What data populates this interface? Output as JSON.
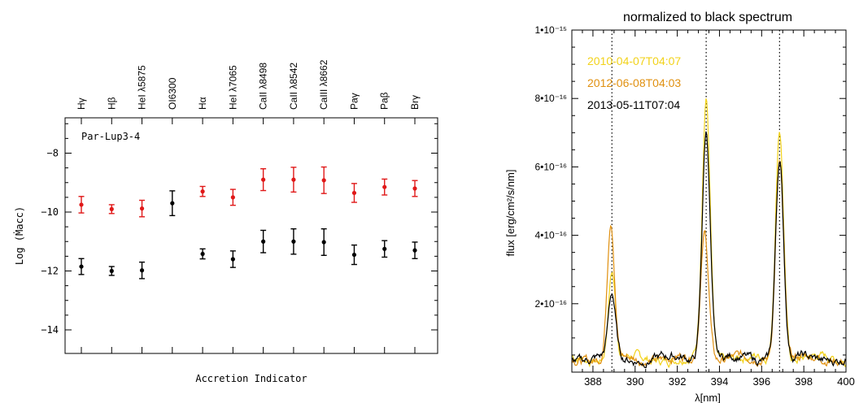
{
  "chart_data": [
    {
      "type": "scatter",
      "title": "",
      "annotation": "Par-Lup3-4",
      "xlabel": "Accretion Indicator",
      "ylabel": "Log (Ṁacc)",
      "categories": [
        "Hγ",
        "Hβ",
        "HeI λ5875",
        "OI6300",
        "Hα",
        "HeI λ7065",
        "CaII λ8498",
        "CaII λ8542",
        "CaIII λ8662",
        "Paγ",
        "Paβ",
        "Brγ"
      ],
      "ylim": [
        -14.8,
        -6.8
      ],
      "yticks": [
        -14,
        -12,
        -10,
        -8
      ],
      "series": [
        {
          "color": "#e01818",
          "values": [
            -9.75,
            -9.9,
            -9.88,
            null,
            -9.3,
            -9.5,
            -8.9,
            -8.9,
            -8.92,
            -9.35,
            -9.15,
            -9.2
          ],
          "err": [
            0.28,
            0.15,
            0.28,
            null,
            0.17,
            0.27,
            0.37,
            0.42,
            0.45,
            0.32,
            0.27,
            0.27
          ]
        },
        {
          "color": "#000000",
          "values": [
            -11.85,
            -12.0,
            -11.98,
            -9.7,
            -11.42,
            -11.6,
            -11.0,
            -11.0,
            -11.02,
            -11.45,
            -11.25,
            -11.3
          ],
          "err": [
            0.27,
            0.15,
            0.28,
            0.42,
            0.17,
            0.28,
            0.38,
            0.43,
            0.45,
            0.33,
            0.28,
            0.28
          ]
        }
      ]
    },
    {
      "type": "line",
      "title": "normalized to black spectrum",
      "xlabel": "λ[nm]",
      "ylabel": "flux [erg/cm²/s/nm]",
      "xlim": [
        387,
        400
      ],
      "ylim": [
        0,
        1e-15
      ],
      "xticks": [
        388,
        390,
        392,
        394,
        396,
        398,
        400
      ],
      "ytick_labels": [
        "1•10⁻¹⁵",
        "8•10⁻¹⁶",
        "6•10⁻¹⁶",
        "4•10⁻¹⁶",
        "2•10⁻¹⁶"
      ],
      "yticks": [
        1e-15,
        8e-16,
        6e-16,
        4e-16,
        2e-16
      ],
      "vlines": [
        388.9,
        393.37,
        396.85
      ],
      "baseline": 4e-17,
      "series": [
        {
          "name": "2010-04-07T04:07",
          "color": "#f2d21a",
          "peaks": [
            {
              "x": 388.9,
              "amp": 2.55e-16,
              "w": 0.17
            },
            {
              "x": 393.37,
              "amp": 7.6e-16,
              "w": 0.19
            },
            {
              "x": 396.85,
              "amp": 6.8e-16,
              "w": 0.19
            }
          ]
        },
        {
          "name": "2012-06-08T04:03",
          "color": "#e09010",
          "peaks": [
            {
              "x": 388.85,
              "amp": 4.05e-16,
              "w": 0.17
            },
            {
              "x": 393.3,
              "amp": 3.7e-16,
              "w": 0.19
            },
            {
              "x": 396.85,
              "amp": 5.8e-16,
              "w": 0.19
            }
          ]
        },
        {
          "name": "2013-05-11T07:04",
          "color": "#000000",
          "peaks": [
            {
              "x": 388.9,
              "amp": 1.85e-16,
              "w": 0.17
            },
            {
              "x": 393.37,
              "amp": 6.7e-16,
              "w": 0.19
            },
            {
              "x": 396.85,
              "amp": 5.85e-16,
              "w": 0.19
            }
          ]
        }
      ]
    }
  ]
}
